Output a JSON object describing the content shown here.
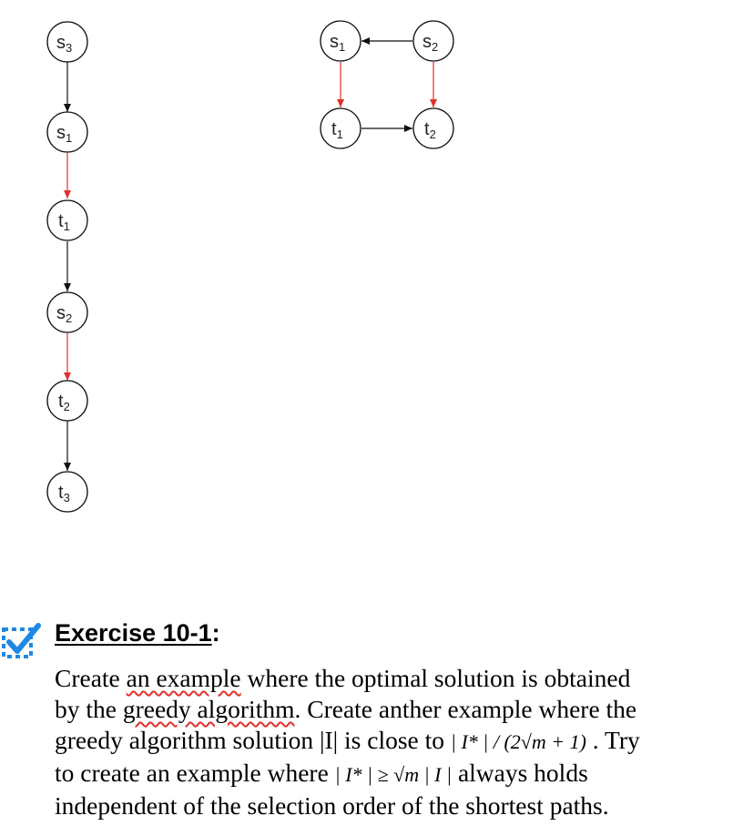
{
  "graph_left": {
    "nodes": [
      {
        "base": "s",
        "sub": "3"
      },
      {
        "base": "s",
        "sub": "1"
      },
      {
        "base": "t",
        "sub": "1"
      },
      {
        "base": "s",
        "sub": "2"
      },
      {
        "base": "t",
        "sub": "2"
      },
      {
        "base": "t",
        "sub": "3"
      }
    ],
    "edge_colors": [
      "black",
      "red",
      "black",
      "red",
      "black"
    ]
  },
  "graph_right": {
    "nodes": [
      {
        "base": "s",
        "sub": "1"
      },
      {
        "base": "s",
        "sub": "2"
      },
      {
        "base": "t",
        "sub": "1"
      },
      {
        "base": "t",
        "sub": "2"
      }
    ]
  },
  "colors": {
    "red_edge": "#e0312c",
    "black_edge": "#111111",
    "icon_blue": "#1e88e5"
  },
  "exercise": {
    "title": "Exercise 10-1",
    "colon": ":",
    "line1_pre": "Create ",
    "line1_mark": "an example",
    "line1_post": " where the optimal solution is obtained",
    "line2_pre": "by the ",
    "line2_mark": "greedy algorithm",
    "line2_post": ". Create anther example where the",
    "line3_pre": "greedy algorithm solution |I| is close to ",
    "line3_math": "| I* | / (2√m + 1)",
    "line3_post": "  . Try",
    "line4_pre": "to create an example where ",
    "line4_math": "| I* | ≥ √m  | I |",
    "line4_post": "  always holds",
    "line5": "independent of the selection order of the shortest paths."
  }
}
